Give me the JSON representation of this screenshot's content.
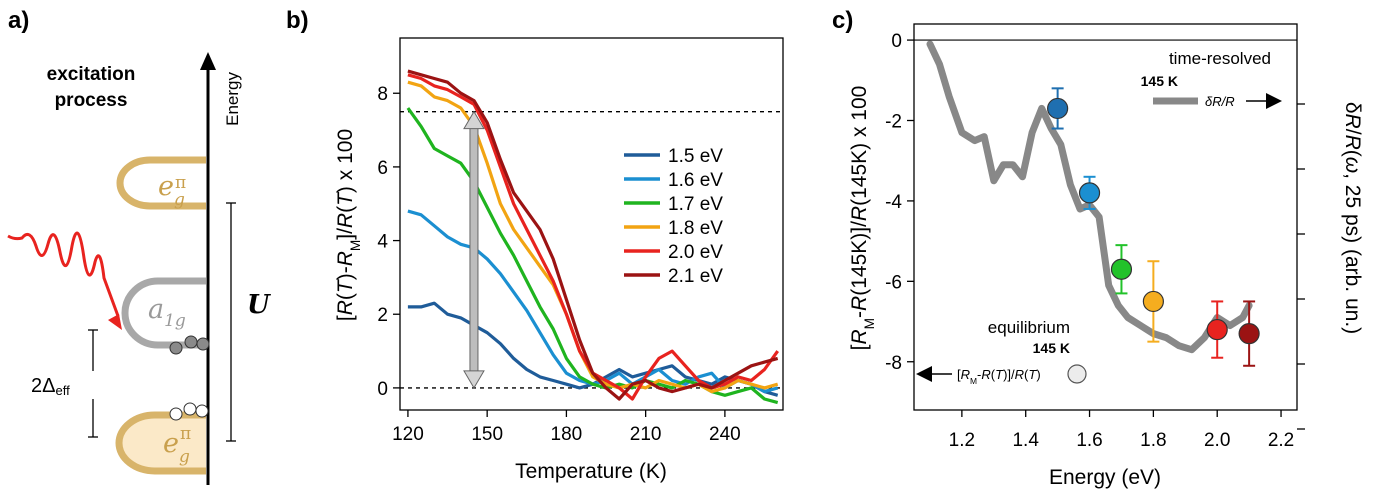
{
  "panel_a": {
    "label": "a)",
    "title_line1": "excitation",
    "title_line2": "process",
    "energy_label": "Energy",
    "upper_level": "e",
    "upper_level_sub": "g",
    "upper_level_sup": "π",
    "middle_level": "a",
    "middle_level_sub": "1g",
    "lower_level": "e",
    "lower_level_sub": "g",
    "lower_level_sup": "π",
    "gap_label_prefix": "2Δ",
    "gap_label_sub": "eff",
    "u_label": "U",
    "colors": {
      "eg": "#d8b46a",
      "eg_fill": "#fbe9c8",
      "a1g": "#a8a8a8",
      "pulse": "#e8231f"
    }
  },
  "chart_data": [
    {
      "panel_label": "b)",
      "type": "line",
      "xlabel": "Temperature (K)",
      "ylabel": "[R(T)-R_M]/R(T)  x 100",
      "ylabel_parts": [
        "[",
        "R",
        "(",
        "T",
        ")-",
        "R",
        "M",
        "]/",
        "R",
        "(",
        "T",
        ")  x 100"
      ],
      "xlim": [
        117,
        262
      ],
      "ylim": [
        -0.6,
        9.5
      ],
      "xticks": [
        120,
        150,
        180,
        210,
        240
      ],
      "yticks": [
        0,
        2,
        4,
        6,
        8
      ],
      "grid": false,
      "legend_position": "right",
      "reference_lines": [
        0,
        7.5
      ],
      "arrow_at_x": 145,
      "series": [
        {
          "name": "1.5 eV",
          "color": "#1f5c99",
          "x": [
            120,
            125,
            130,
            135,
            140,
            145,
            150,
            155,
            160,
            165,
            170,
            175,
            180,
            185,
            190,
            195,
            200,
            205,
            210,
            215,
            220,
            225,
            230,
            235,
            240,
            245,
            250,
            255,
            260
          ],
          "values": [
            2.2,
            2.2,
            2.3,
            2.0,
            1.9,
            1.7,
            1.5,
            1.2,
            0.8,
            0.5,
            0.3,
            0.2,
            0.1,
            0.0,
            0.1,
            0.3,
            0.5,
            0.3,
            0.4,
            0.5,
            0.6,
            0.3,
            0.2,
            0.1,
            0.3,
            0.2,
            0.1,
            -0.1,
            -0.2
          ]
        },
        {
          "name": "1.6 eV",
          "color": "#1b8fd1",
          "x": [
            120,
            125,
            130,
            135,
            140,
            145,
            150,
            155,
            160,
            165,
            170,
            175,
            180,
            185,
            190,
            195,
            200,
            205,
            210,
            215,
            220,
            225,
            230,
            235,
            240,
            245,
            250,
            255,
            260
          ],
          "values": [
            4.8,
            4.7,
            4.4,
            4.1,
            3.9,
            3.8,
            3.5,
            3.1,
            2.6,
            2.1,
            1.5,
            0.9,
            0.4,
            0.2,
            0.1,
            0.2,
            0.4,
            0.1,
            0.3,
            0.5,
            0.2,
            0.1,
            0.3,
            0.4,
            0.0,
            0.2,
            0.1,
            -0.1,
            0.0
          ]
        },
        {
          "name": "1.7 eV",
          "color": "#1fb41f",
          "x": [
            120,
            125,
            130,
            135,
            140,
            145,
            150,
            155,
            160,
            165,
            170,
            175,
            180,
            185,
            190,
            195,
            200,
            205,
            210,
            215,
            220,
            225,
            230,
            235,
            240,
            245,
            250,
            255,
            260
          ],
          "values": [
            7.6,
            7.1,
            6.5,
            6.3,
            6.1,
            5.6,
            4.9,
            4.2,
            3.6,
            2.9,
            2.2,
            1.6,
            0.8,
            0.3,
            0.1,
            0.0,
            0.1,
            0.0,
            0.2,
            0.1,
            0.0,
            0.2,
            0.1,
            -0.1,
            -0.2,
            -0.1,
            0.0,
            -0.3,
            -0.4
          ]
        },
        {
          "name": "1.8 eV",
          "color": "#f2a412",
          "x": [
            120,
            125,
            130,
            135,
            140,
            145,
            150,
            155,
            160,
            165,
            170,
            175,
            180,
            185,
            190,
            195,
            200,
            205,
            210,
            215,
            220,
            225,
            230,
            235,
            240,
            245,
            250,
            255,
            260
          ],
          "values": [
            8.3,
            8.2,
            7.9,
            7.8,
            7.6,
            7.1,
            6.1,
            5.0,
            4.3,
            3.8,
            3.3,
            2.8,
            2.0,
            1.0,
            0.3,
            0.1,
            0.0,
            0.1,
            0.0,
            0.2,
            0.1,
            0.0,
            0.1,
            -0.1,
            0.0,
            0.2,
            0.1,
            0.0,
            0.1
          ]
        },
        {
          "name": "2.0 eV",
          "color": "#e8231f",
          "x": [
            120,
            125,
            130,
            135,
            140,
            145,
            150,
            155,
            160,
            165,
            170,
            175,
            180,
            185,
            190,
            195,
            200,
            205,
            210,
            215,
            220,
            225,
            230,
            235,
            240,
            245,
            250,
            255,
            260
          ],
          "values": [
            8.5,
            8.4,
            8.2,
            8.1,
            7.9,
            7.7,
            7.0,
            6.0,
            5.0,
            4.3,
            3.6,
            2.9,
            2.0,
            1.0,
            0.4,
            0.2,
            0.0,
            -0.3,
            0.3,
            0.8,
            1.0,
            0.6,
            0.2,
            0.0,
            0.1,
            0.3,
            0.2,
            0.5,
            1.0
          ]
        },
        {
          "name": "2.1 eV",
          "color": "#9b1313",
          "x": [
            120,
            125,
            130,
            135,
            140,
            145,
            150,
            155,
            160,
            165,
            170,
            175,
            180,
            185,
            190,
            195,
            200,
            205,
            210,
            215,
            220,
            225,
            230,
            235,
            240,
            245,
            250,
            255,
            260
          ],
          "values": [
            8.6,
            8.5,
            8.4,
            8.3,
            8.0,
            7.8,
            7.2,
            6.2,
            5.3,
            4.8,
            4.3,
            3.5,
            2.4,
            1.3,
            0.4,
            0.0,
            -0.3,
            0.1,
            0.2,
            0.0,
            -0.1,
            0.0,
            0.1,
            0.0,
            0.2,
            0.4,
            0.6,
            0.7,
            0.8
          ]
        }
      ]
    },
    {
      "panel_label": "c)",
      "type": "line",
      "xlabel": "Energy (eV)",
      "ylabel_left": "[R_M-R(145K)]/R(145K)  x 100",
      "ylabel_left_parts": [
        "[",
        "R",
        "M",
        "-",
        "R",
        "(145K)]/",
        "R",
        "(145K)  x 100"
      ],
      "ylabel_right": "δR/R(ω, 25 ps) (arb. un.)",
      "ylabel_right_parts": [
        "δ",
        "R",
        "/",
        "R",
        "(",
        "ω",
        ", 25 ps) (arb. un.)"
      ],
      "xlim": [
        1.05,
        2.25
      ],
      "ylim": [
        -9.2,
        0.4
      ],
      "xticks": [
        1.2,
        1.4,
        1.6,
        1.8,
        2.0,
        2.2
      ],
      "yticks": [
        0,
        -2,
        -4,
        -6,
        -8
      ],
      "grid": false,
      "reference_lines": [
        0
      ],
      "annotations": {
        "time_resolved": "time-resolved",
        "time_resolved_temp": "145 K",
        "trace_legend": "δR/R",
        "equilibrium": "equilibrium",
        "equilibrium_temp": "145 K",
        "points_legend": "[R_M-R(T)]/R(T)",
        "points_legend_parts": [
          "[",
          "R",
          "M",
          "-",
          "R",
          "(",
          "T",
          ")]/",
          "R",
          "(",
          "T",
          ")"
        ]
      },
      "trace": {
        "name": "δR/R",
        "color": "#888888",
        "x": [
          1.1,
          1.13,
          1.16,
          1.2,
          1.24,
          1.27,
          1.3,
          1.33,
          1.36,
          1.39,
          1.42,
          1.45,
          1.48,
          1.51,
          1.54,
          1.57,
          1.6,
          1.63,
          1.66,
          1.69,
          1.72,
          1.76,
          1.8,
          1.84,
          1.88,
          1.92,
          1.96,
          2.0,
          2.04,
          2.08,
          2.1
        ],
        "values": [
          -0.1,
          -0.6,
          -1.4,
          -2.3,
          -2.5,
          -2.4,
          -3.5,
          -3.1,
          -3.1,
          -3.4,
          -2.3,
          -1.7,
          -2.2,
          -2.6,
          -3.6,
          -4.2,
          -4.1,
          -4.4,
          -6.1,
          -6.6,
          -6.9,
          -7.1,
          -7.3,
          -7.4,
          -7.6,
          -7.7,
          -7.4,
          -6.9,
          -7.1,
          -6.9,
          -6.6
        ]
      },
      "points": [
        {
          "x": 1.5,
          "y": -1.7,
          "err": 0.5,
          "color": "#1f6fb0"
        },
        {
          "x": 1.6,
          "y": -3.8,
          "err": 0.4,
          "color": "#1b8fd1"
        },
        {
          "x": 1.7,
          "y": -5.7,
          "err": 0.6,
          "color": "#22c22a"
        },
        {
          "x": 1.8,
          "y": -6.5,
          "err": 1.0,
          "color": "#f5ad1f"
        },
        {
          "x": 2.0,
          "y": -7.2,
          "err": 0.7,
          "color": "#e8231f"
        },
        {
          "x": 2.1,
          "y": -7.3,
          "err": 0.8,
          "color": "#9b1313"
        }
      ]
    }
  ]
}
